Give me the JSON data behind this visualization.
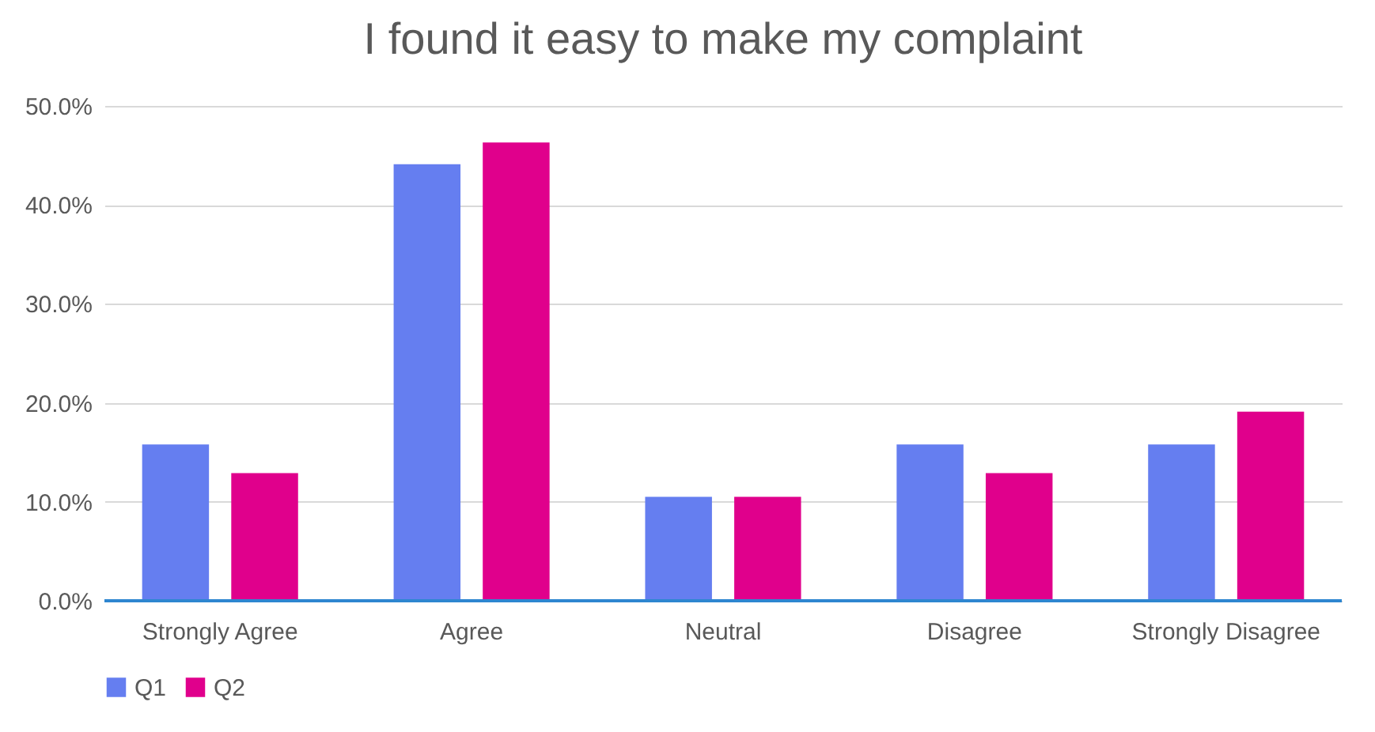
{
  "chart_data": {
    "type": "bar",
    "title": "I found it easy to make my complaint",
    "categories": [
      "Strongly Agree",
      "Agree",
      "Neutral",
      "Disagree",
      "Strongly Disagree"
    ],
    "series": [
      {
        "name": "Q1",
        "color": "#657ef0",
        "values": [
          15.8,
          44.1,
          10.5,
          15.8,
          15.8
        ]
      },
      {
        "name": "Q2",
        "color": "#e0008c",
        "values": [
          12.9,
          46.3,
          10.5,
          12.9,
          19.1
        ]
      }
    ],
    "ylim": [
      0,
      50
    ],
    "yticks": [
      {
        "value": 0,
        "label": "0.0%"
      },
      {
        "value": 10,
        "label": "10.0%"
      },
      {
        "value": 20,
        "label": "20.0%"
      },
      {
        "value": 30,
        "label": "30.0%"
      },
      {
        "value": 40,
        "label": "40.0%"
      },
      {
        "value": 50,
        "label": "50.0%"
      }
    ],
    "grid": "y",
    "legend": "bottom"
  }
}
